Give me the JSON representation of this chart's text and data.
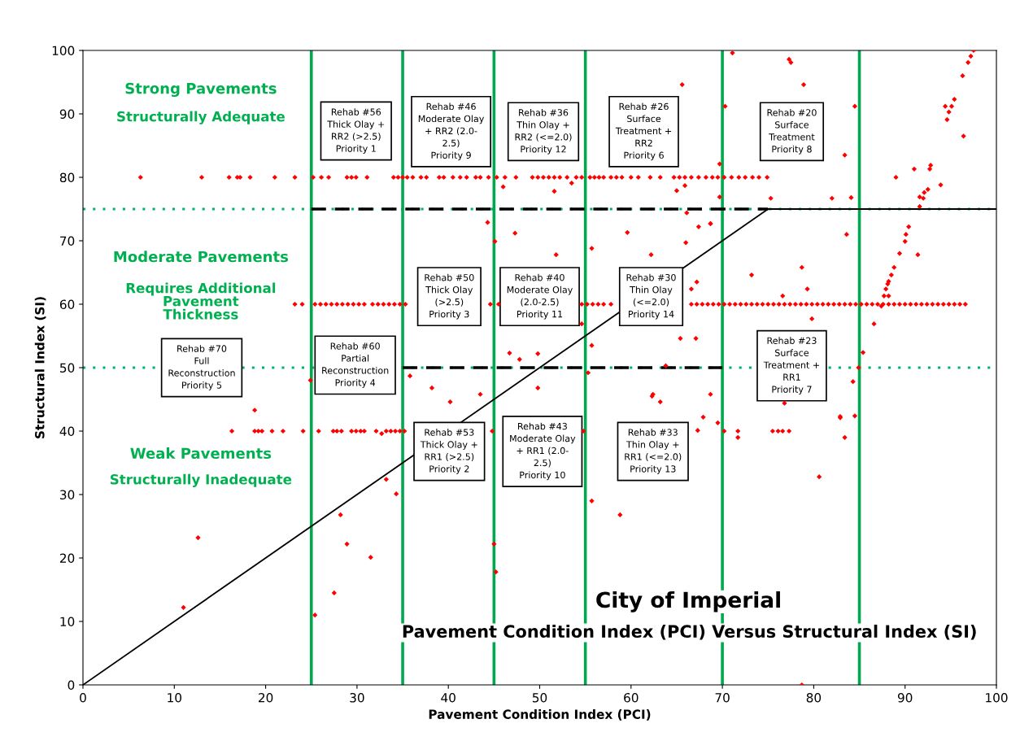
{
  "chart_data": {
    "type": "scatter",
    "title": "City of Imperial",
    "subtitle": "Pavement Condition Index (PCI) Versus Structural Index (SI)",
    "xlabel": "Pavement Condition Index (PCI)",
    "ylabel": "Structural Index (SI)",
    "xlim": [
      0,
      100
    ],
    "ylim": [
      0,
      100
    ],
    "xticks": [
      0,
      10,
      20,
      30,
      40,
      50,
      60,
      70,
      80,
      90,
      100
    ],
    "yticks": [
      0,
      10,
      20,
      30,
      40,
      50,
      60,
      70,
      80,
      90,
      100
    ],
    "grid": false,
    "series": [
      {
        "marker": "diamond",
        "color": "#ff0000",
        "x": [
          6.3,
          13,
          16,
          16.9,
          17.2,
          18.3,
          21,
          23.2,
          25.2,
          26.1,
          26.9,
          28.9,
          29.4,
          29.9,
          31.1,
          34,
          34.5,
          35,
          35.5,
          36.1,
          37,
          37.6,
          39,
          39.5,
          40.5,
          41.3,
          42,
          43,
          43.5,
          44.4,
          45.3,
          46.2,
          47.4,
          49.2,
          49.8,
          50.4,
          51,
          51.6,
          52.2,
          53,
          54,
          54.6,
          55.5,
          56,
          56.5,
          57,
          57.8,
          58.4,
          59,
          60,
          60.8,
          62.1,
          63.2,
          64.7,
          65.3,
          65.9,
          66.6,
          67.4,
          68.2,
          68.9,
          69.5,
          70.2,
          71,
          71.8,
          72.5,
          73.3,
          74,
          74.9
        ],
        "values": [
          80,
          80,
          80,
          80,
          80,
          80,
          80,
          80,
          80,
          80,
          80,
          80,
          80,
          80,
          80,
          80,
          80,
          80,
          80,
          80,
          80,
          80,
          80,
          80,
          80,
          80,
          80,
          80,
          80,
          80,
          80,
          80,
          80,
          80,
          80,
          80,
          80,
          80,
          80,
          80,
          80,
          80,
          80,
          80,
          80,
          80,
          80,
          80,
          80,
          80,
          80,
          80,
          80,
          80,
          80,
          80,
          80,
          80,
          80,
          80,
          80,
          80,
          80,
          80,
          80,
          80,
          80,
          80
        ]
      },
      {
        "marker": "diamond",
        "color": "#ff0000",
        "x": [
          23.2,
          24,
          25.4,
          26,
          26.6,
          27.2,
          27.8,
          28.4,
          29,
          29.6,
          30.2,
          30.8,
          31.7,
          32.3,
          32.9,
          33.5,
          34.1,
          34.7,
          35.3,
          44.6,
          45.5,
          54.6,
          55.2,
          55.8,
          56.4,
          57,
          57.8,
          66.6,
          67.2,
          67.8,
          68.4,
          69,
          69.6,
          70.2,
          70.8,
          71.4,
          72,
          72.6,
          73.2,
          73.8,
          74.4,
          75,
          75.6,
          76.2,
          76.8,
          77.4,
          78,
          78.6,
          79.2,
          79.8,
          80.4,
          81,
          81.6,
          82.2,
          82.8,
          83.4,
          84,
          84.6,
          85.2,
          85.8,
          86.4,
          87,
          87.6,
          88.2,
          88.8,
          89.4,
          90,
          90.6,
          91.2,
          91.8,
          92.4,
          93,
          93.6,
          94.2,
          94.8,
          95.4,
          96,
          96.6
        ],
        "values": [
          60,
          60,
          60,
          60,
          60,
          60,
          60,
          60,
          60,
          60,
          60,
          60,
          60,
          60,
          60,
          60,
          60,
          60,
          60,
          60,
          60,
          60,
          60,
          60,
          60,
          60,
          60,
          60,
          60,
          60,
          60,
          60,
          60,
          60,
          60,
          60,
          60,
          60,
          60,
          60,
          60,
          60,
          60,
          60,
          60,
          60,
          60,
          60,
          60,
          60,
          60,
          60,
          60,
          60,
          60,
          60,
          60,
          60,
          60,
          60,
          60,
          60,
          60,
          60,
          60,
          60,
          60,
          60,
          60,
          60,
          60,
          60,
          60,
          60,
          60,
          60,
          60,
          60
        ]
      },
      {
        "marker": "diamond",
        "color": "#ff0000",
        "x": [
          16.3,
          18.8,
          19.2,
          19.6,
          20.7,
          21.9,
          24.1,
          25.8,
          27.4,
          27.8,
          28.3,
          29.4,
          29.9,
          30.4,
          30.8,
          32.1,
          32.7,
          33.2,
          33.7,
          34.2,
          34.7,
          35.2,
          44.8,
          54.8,
          70.2,
          71.7,
          71.7,
          75.5,
          76.1,
          76.6,
          77.3
        ],
        "values": [
          40,
          40,
          40,
          40,
          40,
          40,
          40,
          40,
          40,
          40,
          40,
          40,
          40,
          40,
          40,
          40,
          39.6,
          40,
          40,
          40,
          40,
          40,
          40,
          40,
          40,
          40,
          39,
          40,
          40,
          40,
          40
        ]
      },
      {
        "marker": "diamond",
        "color": "#ff0000",
        "x": [
          65.6,
          71.1,
          77.3,
          77.5,
          78.9,
          70.3,
          84.5,
          83.4,
          69.7,
          69.7,
          75.3,
          82,
          84.1,
          68.7,
          83.6,
          73.2,
          78.7,
          79.3,
          76.6,
          79.8,
          86.6,
          85.4,
          84.9,
          97.5,
          97.2,
          96.9,
          96.3,
          95.4,
          94.4,
          95.1,
          94.8,
          94.6,
          96.4,
          92.8,
          92.7,
          91,
          89,
          93.9,
          92.5,
          92.1,
          91.6,
          92,
          91.6,
          90.4,
          90.1,
          90,
          89.4,
          91.4,
          88.8,
          88.5,
          88.2,
          88.1,
          87.9,
          87.7,
          88.2,
          87.4,
          46,
          51.6,
          53.5,
          65,
          65.9,
          66.1,
          67.4,
          68.7,
          44.3,
          47.3,
          45.1,
          59.6,
          66,
          55.7,
          51.8,
          62.2,
          67.2,
          66.6,
          54.6,
          65.4,
          67.1,
          55.7,
          46.7,
          47.8,
          49.8,
          63.8,
          55.3,
          35.8,
          38.2,
          40.2,
          43.5,
          49.8,
          34.3,
          62.4,
          62.3,
          63.2,
          68.7,
          67.9,
          67.3,
          55.7,
          58.8,
          45,
          45.2,
          69.5,
          82.9,
          82.9,
          84.5,
          84.3,
          83.4,
          76.8,
          80.6,
          78.7,
          18.8,
          24.9,
          33.2,
          28.2,
          28.9,
          31.5,
          27.5,
          25.4,
          12.6,
          11
        ],
        "values": [
          94.6,
          99.6,
          98.6,
          98.1,
          94.6,
          91.2,
          91.2,
          83.5,
          82.1,
          76.9,
          76.7,
          76.7,
          76.8,
          72.7,
          71,
          64.6,
          65.8,
          62.4,
          61.3,
          57.7,
          56.9,
          52.4,
          50,
          100,
          99.1,
          98.1,
          96,
          92.3,
          91.2,
          91.2,
          90.3,
          89.1,
          86.5,
          81.9,
          81.3,
          81.3,
          80,
          78.8,
          78.1,
          77.6,
          76.9,
          76.7,
          75.4,
          72.2,
          71,
          69.9,
          68,
          67.8,
          65.8,
          64.6,
          63.6,
          63.2,
          62.4,
          61.3,
          61.3,
          59.7,
          78.5,
          77.8,
          79.1,
          77.9,
          78.7,
          74.4,
          72.2,
          72.7,
          72.9,
          71.2,
          69.9,
          71.3,
          69.7,
          68.8,
          67.8,
          67.8,
          63.5,
          62.4,
          56.9,
          54.6,
          54.6,
          53.5,
          52.3,
          51.3,
          52.2,
          50.3,
          49.2,
          48.7,
          46.8,
          44.6,
          45.8,
          46.8,
          30.1,
          45.8,
          45.5,
          44.6,
          45.8,
          42.2,
          40.1,
          29,
          26.8,
          22.2,
          17.8,
          41.3,
          42.3,
          42.1,
          42.4,
          47.8,
          39,
          44.4,
          32.8,
          0,
          43.3,
          48,
          32.4,
          26.8,
          22.2,
          20.1,
          14.5,
          11,
          23.2,
          12.2
        ]
      },
      {
        "type": "line",
        "color": "#000000",
        "line_style": "solid",
        "x": [
          0,
          75,
          100
        ],
        "values": [
          0,
          75,
          75
        ]
      },
      {
        "type": "line",
        "color": "#000000",
        "line_style": "dashed",
        "x": [
          25,
          75
        ],
        "values": [
          75,
          75
        ]
      },
      {
        "type": "line",
        "color": "#000000",
        "line_style": "dashed",
        "x": [
          35,
          70
        ],
        "values": [
          50,
          50
        ]
      }
    ],
    "ref_lines": [
      {
        "axis": "y",
        "value": 75,
        "color": "#00b26b",
        "line_style": "dotted"
      },
      {
        "axis": "y",
        "value": 50,
        "color": "#00b26b",
        "line_style": "dotted"
      },
      {
        "axis": "x",
        "value": 25,
        "color": "#00a94f",
        "line_style": "solid"
      },
      {
        "axis": "x",
        "value": 35,
        "color": "#00a94f",
        "line_style": "solid"
      },
      {
        "axis": "x",
        "value": 45,
        "color": "#00a94f",
        "line_style": "solid"
      },
      {
        "axis": "x",
        "value": 55,
        "color": "#00a94f",
        "line_style": "solid"
      },
      {
        "axis": "x",
        "value": 70,
        "color": "#00a94f",
        "line_style": "solid"
      },
      {
        "axis": "x",
        "value": 85,
        "color": "#00a94f",
        "line_style": "solid"
      }
    ],
    "annotations": [
      "Strong Pavements",
      "Structurally Adequate",
      "Moderate Pavements",
      "Requires Additional\nPavement\nThickness",
      "Weak Pavements",
      "Structurally Inadequate",
      "Rehab #56\nThick Olay +\nRR2 (>2.5)\nPriority 1",
      "Rehab #46\nModerate Olay\n+ RR2 (2.0-\n2.5)\nPriority 9",
      "Rehab #36\nThin Olay +\nRR2 (<=2.0)\nPriority 12",
      "Rehab #26\nSurface\nTreatment +\nRR2\nPriority 6",
      "Rehab #20\nSurface\nTreatment\nPriority 8",
      "Rehab #50\nThick Olay\n(>2.5)\nPriority 3",
      "Rehab #40\nModerate Olay\n(2.0-2.5)\nPriority 11",
      "Rehab #30\nThin Olay\n(<=2.0)\nPriority 14",
      "Rehab #70\nFull\nReconstruction\nPriority 5",
      "Rehab #60\nPartial\nReconstruction\nPriority 4",
      "Rehab #23\nSurface\nTreatment +\nRR1\nPriority 7",
      "Rehab #53\nThick Olay +\nRR1 (>2.5)\nPriority 2",
      "Rehab #43\nModerate Olay\n+ RR1 (2.0-\n2.5)\nPriority 10",
      "Rehab #33\nThin Olay +\nRR1 (<=2.0)\nPriority 13"
    ]
  }
}
